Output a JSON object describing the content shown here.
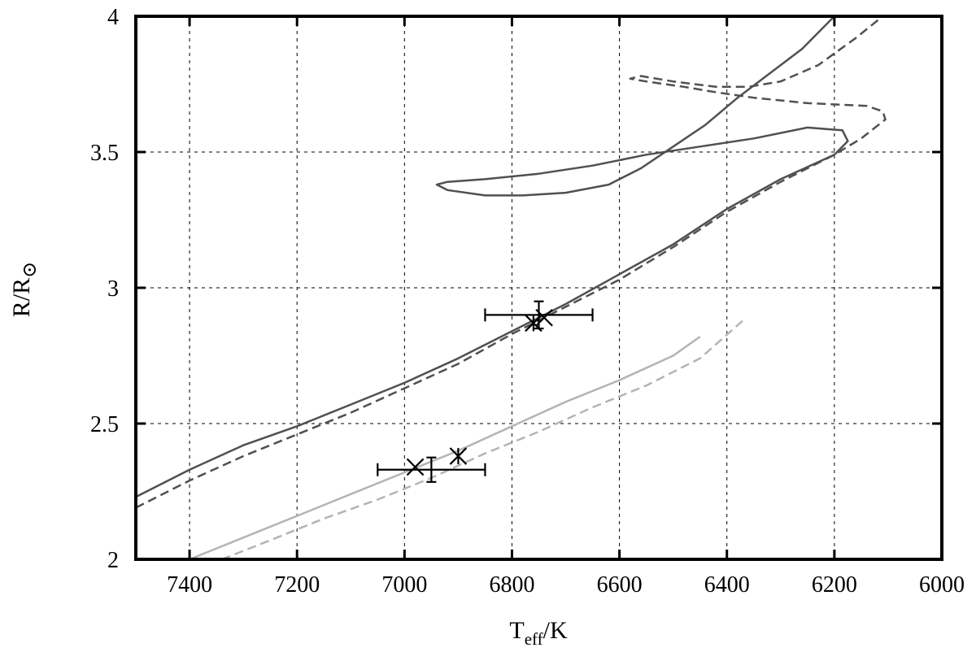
{
  "chart_data": {
    "type": "line",
    "xlabel": {
      "main": "T",
      "sub": "eff",
      "rest": "/K"
    },
    "ylabel": {
      "main": "R/R",
      "sub": "⊙"
    },
    "xlim": [
      7500,
      6000
    ],
    "ylim": [
      2,
      4
    ],
    "x_reversed": true,
    "grid": true,
    "xticks": [
      7400,
      7200,
      7000,
      6800,
      6600,
      6400,
      6200,
      6000
    ],
    "yticks": [
      2,
      2.5,
      3,
      3.5,
      4
    ],
    "ytick_labels": [
      "2",
      "2.5",
      "3",
      "3.5",
      "4"
    ],
    "series": [
      {
        "style": "solid",
        "color": "#505050",
        "points": [
          [
            7500,
            2.23
          ],
          [
            7400,
            2.33
          ],
          [
            7300,
            2.42
          ],
          [
            7200,
            2.49
          ],
          [
            7100,
            2.57
          ],
          [
            7000,
            2.65
          ],
          [
            6900,
            2.74
          ],
          [
            6800,
            2.84
          ],
          [
            6700,
            2.94
          ],
          [
            6600,
            3.05
          ],
          [
            6500,
            3.16
          ],
          [
            6400,
            3.29
          ],
          [
            6300,
            3.4
          ],
          [
            6200,
            3.49
          ],
          [
            6175,
            3.54
          ],
          [
            6185,
            3.58
          ],
          [
            6250,
            3.59
          ],
          [
            6350,
            3.55
          ],
          [
            6450,
            3.52
          ],
          [
            6550,
            3.49
          ],
          [
            6650,
            3.45
          ],
          [
            6750,
            3.42
          ],
          [
            6850,
            3.4
          ],
          [
            6920,
            3.39
          ],
          [
            6940,
            3.38
          ],
          [
            6920,
            3.36
          ],
          [
            6850,
            3.34
          ],
          [
            6780,
            3.34
          ],
          [
            6700,
            3.35
          ],
          [
            6620,
            3.38
          ],
          [
            6560,
            3.44
          ],
          [
            6500,
            3.52
          ],
          [
            6440,
            3.6
          ],
          [
            6380,
            3.7
          ],
          [
            6320,
            3.79
          ],
          [
            6260,
            3.88
          ],
          [
            6200,
            4.0
          ]
        ]
      },
      {
        "style": "dashed",
        "color": "#505050",
        "points": [
          [
            7500,
            2.19
          ],
          [
            7400,
            2.29
          ],
          [
            7300,
            2.38
          ],
          [
            7200,
            2.46
          ],
          [
            7100,
            2.54
          ],
          [
            7000,
            2.63
          ],
          [
            6900,
            2.72
          ],
          [
            6800,
            2.83
          ],
          [
            6700,
            2.93
          ],
          [
            6600,
            3.03
          ],
          [
            6500,
            3.15
          ],
          [
            6400,
            3.28
          ],
          [
            6300,
            3.39
          ],
          [
            6200,
            3.49
          ],
          [
            6150,
            3.55
          ],
          [
            6105,
            3.62
          ],
          [
            6110,
            3.65
          ],
          [
            6140,
            3.67
          ],
          [
            6250,
            3.68
          ],
          [
            6350,
            3.7
          ],
          [
            6420,
            3.72
          ],
          [
            6480,
            3.74
          ],
          [
            6550,
            3.76
          ],
          [
            6580,
            3.77
          ],
          [
            6560,
            3.78
          ],
          [
            6500,
            3.76
          ],
          [
            6420,
            3.74
          ],
          [
            6360,
            3.74
          ],
          [
            6300,
            3.76
          ],
          [
            6230,
            3.82
          ],
          [
            6160,
            3.92
          ],
          [
            6110,
            4.0
          ]
        ]
      },
      {
        "style": "solid",
        "color": "#b4b4b4",
        "points": [
          [
            7400,
            2.0
          ],
          [
            7300,
            2.08
          ],
          [
            7200,
            2.16
          ],
          [
            7100,
            2.24
          ],
          [
            7000,
            2.32
          ],
          [
            6900,
            2.4
          ],
          [
            6800,
            2.49
          ],
          [
            6700,
            2.58
          ],
          [
            6600,
            2.66
          ],
          [
            6500,
            2.75
          ],
          [
            6450,
            2.82
          ]
        ]
      },
      {
        "style": "dashed",
        "color": "#b4b4b4",
        "points": [
          [
            7340,
            2.0
          ],
          [
            7250,
            2.07
          ],
          [
            7150,
            2.15
          ],
          [
            7050,
            2.22
          ],
          [
            6950,
            2.3
          ],
          [
            6850,
            2.39
          ],
          [
            6750,
            2.47
          ],
          [
            6650,
            2.56
          ],
          [
            6550,
            2.64
          ],
          [
            6450,
            2.74
          ],
          [
            6370,
            2.88
          ]
        ]
      }
    ],
    "x_markers": [
      [
        6740,
        2.89
      ],
      [
        6980,
        2.34
      ]
    ],
    "star_markers": [
      [
        6760,
        2.87
      ],
      [
        6900,
        2.38
      ]
    ],
    "error_bars": [
      {
        "x": 6750,
        "y": 2.9,
        "xerr": 100,
        "yerr": 0.05
      },
      {
        "x": 6950,
        "y": 2.33,
        "xerr": 100,
        "yerr": 0.045
      }
    ]
  }
}
